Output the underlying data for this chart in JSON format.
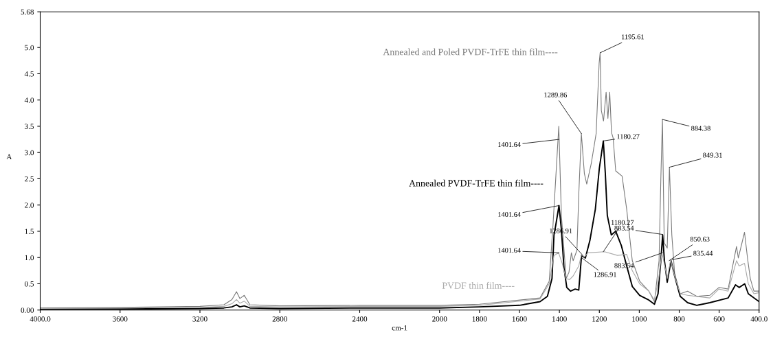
{
  "chart_data": {
    "type": "line",
    "xlabel": "cm-1",
    "ylabel": "A",
    "xlim": [
      4000,
      400
    ],
    "xticks": [
      {
        "value": 4000,
        "label": "4000.0"
      },
      3600,
      3200,
      2800,
      2400,
      2000,
      1800,
      1600,
      1400,
      1200,
      1000,
      800,
      600,
      {
        "value": 400,
        "label": "400.0"
      }
    ],
    "ylim": [
      0,
      5.68
    ],
    "yticks": [
      {
        "value": 0,
        "label": "0.00"
      },
      {
        "value": 0.5,
        "label": "0.5"
      },
      {
        "value": 1,
        "label": "1.0"
      },
      {
        "value": 1.5,
        "label": "1.5"
      },
      {
        "value": 2,
        "label": "2.0"
      },
      {
        "value": 2.5,
        "label": "2.5"
      },
      {
        "value": 3,
        "label": "3.0"
      },
      {
        "value": 3.5,
        "label": "3.5"
      },
      {
        "value": 4,
        "label": "4.0"
      },
      {
        "value": 4.5,
        "label": "4.5"
      },
      {
        "value": 5,
        "label": "5.0"
      },
      {
        "value": 5.68,
        "label": "5.68"
      }
    ],
    "grid": false,
    "legend": false,
    "series": [
      {
        "name": "Annealed and Poled PVDF-TrFE thin film----",
        "color": "#7a7a7a",
        "x": [
          4000,
          3600,
          3200,
          3080,
          3040,
          3017,
          3000,
          2978,
          2950,
          2800,
          2400,
          2000,
          1800,
          1497,
          1451,
          1432,
          1403,
          1390,
          1366,
          1352,
          1340,
          1331,
          1312,
          1303,
          1290,
          1275,
          1263,
          1240,
          1216,
          1201,
          1196,
          1190,
          1179,
          1166,
          1157,
          1148,
          1139,
          1131,
          1118,
          1086,
          1063,
          1035,
          998,
          952,
          924,
          901,
          892,
          884,
          875,
          860,
          849,
          837,
          823,
          795,
          758,
          712,
          647,
          601,
          555,
          513,
          504,
          473,
          458,
          444,
          426,
          400
        ],
        "values": [
          0.04,
          0.05,
          0.07,
          0.1,
          0.2,
          0.35,
          0.22,
          0.28,
          0.1,
          0.08,
          0.09,
          0.09,
          0.11,
          0.23,
          0.55,
          1.62,
          3.5,
          1.8,
          0.6,
          0.72,
          1.09,
          0.94,
          1.14,
          2.2,
          3.36,
          2.6,
          2.4,
          2.8,
          3.36,
          4.7,
          4.9,
          3.8,
          3.6,
          4.15,
          3.65,
          4.15,
          3.38,
          3.28,
          2.65,
          2.55,
          1.92,
          0.94,
          0.55,
          0.36,
          0.16,
          0.94,
          2.5,
          3.63,
          1.28,
          1.18,
          2.72,
          1.43,
          0.7,
          0.31,
          0.36,
          0.26,
          0.28,
          0.43,
          0.4,
          1.21,
          0.99,
          1.48,
          0.99,
          0.6,
          0.36,
          0.36
        ]
      },
      {
        "name": "Annealed PVDF-TrFE thin film----",
        "color": "#000000",
        "x": [
          4000,
          3600,
          3200,
          3080,
          3040,
          3017,
          3000,
          2978,
          2950,
          2800,
          2400,
          2000,
          1800,
          1600,
          1497,
          1460,
          1437,
          1427,
          1418,
          1402,
          1390,
          1377,
          1363,
          1344,
          1321,
          1303,
          1289,
          1270,
          1247,
          1220,
          1200,
          1180,
          1170,
          1160,
          1140,
          1118,
          1090,
          1063,
          1035,
          998,
          952,
          924,
          906,
          892,
          883,
          874,
          860,
          841,
          823,
          795,
          758,
          712,
          647,
          555,
          518,
          500,
          472,
          454,
          400
        ],
        "values": [
          0.02,
          0.02,
          0.03,
          0.04,
          0.06,
          0.1,
          0.06,
          0.08,
          0.04,
          0.03,
          0.04,
          0.04,
          0.06,
          0.09,
          0.16,
          0.26,
          0.6,
          1.43,
          1.62,
          1.99,
          1.53,
          0.8,
          0.43,
          0.36,
          0.4,
          0.38,
          1.04,
          0.99,
          1.33,
          1.92,
          2.7,
          3.22,
          2.6,
          1.8,
          1.43,
          1.5,
          1.23,
          0.84,
          0.45,
          0.28,
          0.19,
          0.11,
          0.31,
          0.94,
          1.43,
          0.94,
          0.53,
          0.94,
          0.65,
          0.26,
          0.14,
          0.09,
          0.14,
          0.23,
          0.48,
          0.43,
          0.5,
          0.31,
          0.16
        ]
      },
      {
        "name": "PVDF thin film----",
        "color": "#aaaaaa",
        "x": [
          4000,
          3600,
          3200,
          3080,
          3040,
          3017,
          3000,
          2978,
          2950,
          2800,
          2400,
          2000,
          1800,
          1497,
          1451,
          1427,
          1404,
          1386,
          1367,
          1349,
          1331,
          1303,
          1289,
          1275,
          1257,
          1174,
          1109,
          1063,
          1035,
          998,
          952,
          924,
          901,
          887,
          875,
          860,
          843,
          823,
          795,
          758,
          647,
          601,
          555,
          513,
          500,
          473,
          454,
          426,
          400
        ],
        "values": [
          0.03,
          0.04,
          0.05,
          0.07,
          0.12,
          0.2,
          0.13,
          0.17,
          0.07,
          0.06,
          0.07,
          0.07,
          0.09,
          0.21,
          0.5,
          1.04,
          1.09,
          0.89,
          0.6,
          0.58,
          0.65,
          0.84,
          1.06,
          1.01,
          1.09,
          1.11,
          1.04,
          1.06,
          0.75,
          0.5,
          0.36,
          0.19,
          0.65,
          1.09,
          0.89,
          0.6,
          0.96,
          0.65,
          0.31,
          0.28,
          0.23,
          0.4,
          0.36,
          0.94,
          0.84,
          0.89,
          0.5,
          0.31,
          0.33
        ]
      }
    ],
    "annotations": [
      {
        "text": "1195.61",
        "x": 1195.61,
        "y": 4.9
      },
      {
        "text": "1289.86",
        "x": 1289.86,
        "y": 3.36
      },
      {
        "text": "1401.64",
        "x": 1401.64,
        "y": 3.25
      },
      {
        "text": "1180.27",
        "x": 1180.27,
        "y": 3.22
      },
      {
        "text": "884.38",
        "x": 884.38,
        "y": 3.63
      },
      {
        "text": "849.31",
        "x": 849.31,
        "y": 2.72
      },
      {
        "text": "1401.64",
        "x": 1401.64,
        "y": 1.99
      },
      {
        "text": "1401.64",
        "x": 1401.64,
        "y": 1.09
      },
      {
        "text": "1286.91",
        "x": 1286.91,
        "y": 1.06
      },
      {
        "text": "1180.27",
        "x": 1180.27,
        "y": 1.11
      },
      {
        "text": "1286.91",
        "x": 1286.91,
        "y": 0.99
      },
      {
        "text": "883.54",
        "x": 883.54,
        "y": 1.44
      },
      {
        "text": "883.54",
        "x": 883.54,
        "y": 1.09
      },
      {
        "text": "850.63",
        "x": 850.63,
        "y": 0.94
      },
      {
        "text": "835.44",
        "x": 835.44,
        "y": 0.96
      }
    ]
  }
}
